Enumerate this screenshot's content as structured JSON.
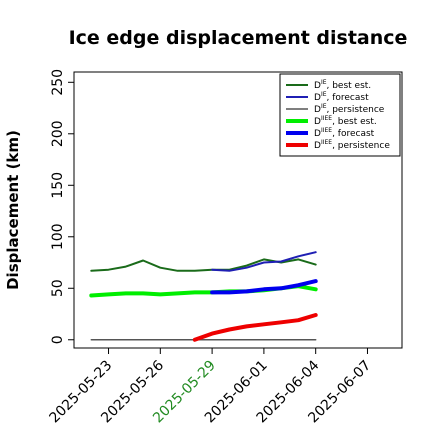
{
  "chart_data": {
    "type": "line",
    "title": "Ice edge displacement distance",
    "ylabel": "Displacement (km)",
    "xlabel": "",
    "ylim": [
      -8,
      260
    ],
    "xlim": [
      "2025-05-21",
      "2025-06-09"
    ],
    "y_ticks": [
      0,
      50,
      100,
      150,
      200,
      250
    ],
    "x_ticks": [
      {
        "date": "2025-05-23",
        "label": "2025-05-23",
        "color": "#000000"
      },
      {
        "date": "2025-05-26",
        "label": "2025-05-26",
        "color": "#000000"
      },
      {
        "date": "2025-05-29",
        "label": "2025-05-29",
        "color": "#228b22"
      },
      {
        "date": "2025-06-01",
        "label": "2025-06-01",
        "color": "#000000"
      },
      {
        "date": "2025-06-04",
        "label": "2025-06-04",
        "color": "#000000"
      },
      {
        "date": "2025-06-07",
        "label": "2025-06-07",
        "color": "#000000"
      }
    ],
    "legend_position": "top-right",
    "series": [
      {
        "name_main": "D",
        "name_sup": "IE",
        "name_rest": ", best est.",
        "color": "#1a6b1a",
        "width": 2,
        "points": [
          [
            "2025-05-22",
            67
          ],
          [
            "2025-05-23",
            68
          ],
          [
            "2025-05-24",
            71
          ],
          [
            "2025-05-25",
            77
          ],
          [
            "2025-05-26",
            70
          ],
          [
            "2025-05-27",
            67
          ],
          [
            "2025-05-28",
            67
          ],
          [
            "2025-05-29",
            68
          ],
          [
            "2025-05-30",
            68
          ],
          [
            "2025-05-31",
            72
          ],
          [
            "2025-06-01",
            78
          ],
          [
            "2025-06-02",
            75
          ],
          [
            "2025-06-03",
            78
          ],
          [
            "2025-06-04",
            73
          ]
        ]
      },
      {
        "name_main": "D",
        "name_sup": "IE",
        "name_rest": ", forecast",
        "color": "#1f1fb4",
        "width": 2,
        "points": [
          [
            "2025-05-29",
            68
          ],
          [
            "2025-05-30",
            67
          ],
          [
            "2025-05-31",
            70
          ],
          [
            "2025-06-01",
            75
          ],
          [
            "2025-06-02",
            76
          ],
          [
            "2025-06-03",
            81
          ],
          [
            "2025-06-04",
            85
          ]
        ]
      },
      {
        "name_main": "D",
        "name_sup": "IE",
        "name_rest": ", persistence",
        "color": "#555555",
        "width": 1.5,
        "points": [
          [
            "2025-05-22",
            0
          ],
          [
            "2025-05-23",
            0
          ],
          [
            "2025-05-24",
            0
          ],
          [
            "2025-05-25",
            0
          ],
          [
            "2025-05-26",
            0
          ],
          [
            "2025-05-27",
            0
          ],
          [
            "2025-05-28",
            0
          ],
          [
            "2025-05-29",
            0
          ],
          [
            "2025-05-30",
            0
          ],
          [
            "2025-05-31",
            0
          ],
          [
            "2025-06-01",
            0
          ],
          [
            "2025-06-02",
            0
          ],
          [
            "2025-06-03",
            0
          ],
          [
            "2025-06-04",
            0
          ]
        ]
      },
      {
        "name_main": "D",
        "name_sup": "IIEE",
        "name_rest": ", best est.",
        "color": "#00ee00",
        "width": 4,
        "points": [
          [
            "2025-05-22",
            43
          ],
          [
            "2025-05-23",
            44
          ],
          [
            "2025-05-24",
            45
          ],
          [
            "2025-05-25",
            45
          ],
          [
            "2025-05-26",
            44
          ],
          [
            "2025-05-27",
            45
          ],
          [
            "2025-05-28",
            46
          ],
          [
            "2025-05-29",
            46
          ],
          [
            "2025-05-30",
            47
          ],
          [
            "2025-05-31",
            47
          ],
          [
            "2025-06-01",
            48
          ],
          [
            "2025-06-02",
            50
          ],
          [
            "2025-06-03",
            52
          ],
          [
            "2025-06-04",
            49
          ]
        ]
      },
      {
        "name_main": "D",
        "name_sup": "IIEE",
        "name_rest": ", forecast",
        "color": "#0000ee",
        "width": 4,
        "points": [
          [
            "2025-05-29",
            46
          ],
          [
            "2025-05-30",
            46
          ],
          [
            "2025-05-31",
            47
          ],
          [
            "2025-06-01",
            49
          ],
          [
            "2025-06-02",
            50
          ],
          [
            "2025-06-03",
            53
          ],
          [
            "2025-06-04",
            57
          ]
        ]
      },
      {
        "name_main": "D",
        "name_sup": "IIEE",
        "name_rest": ", persistence",
        "color": "#ee0000",
        "width": 4,
        "points": [
          [
            "2025-05-28",
            0
          ],
          [
            "2025-05-29",
            6
          ],
          [
            "2025-05-30",
            10
          ],
          [
            "2025-05-31",
            13
          ],
          [
            "2025-06-01",
            15
          ],
          [
            "2025-06-02",
            17
          ],
          [
            "2025-06-03",
            19
          ],
          [
            "2025-06-04",
            24
          ]
        ]
      }
    ]
  }
}
